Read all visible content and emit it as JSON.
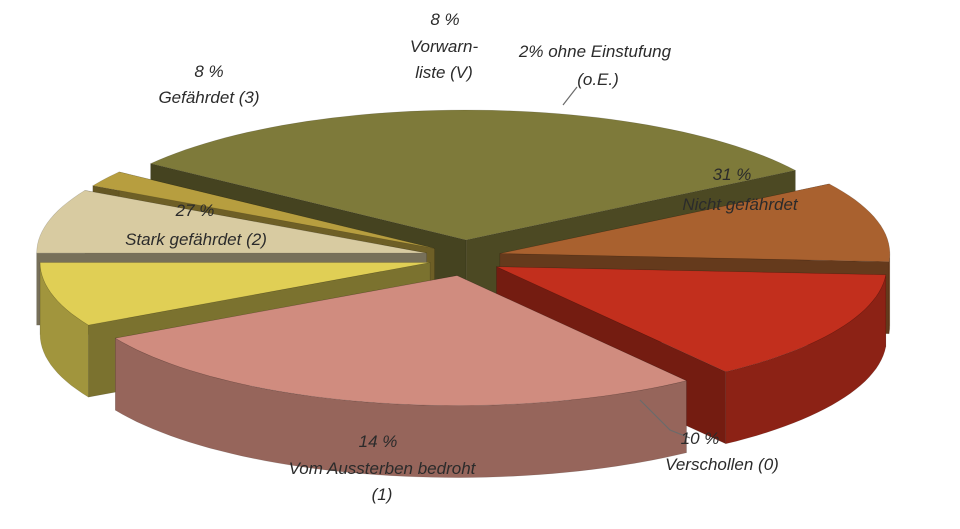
{
  "chart_data": {
    "type": "pie",
    "style": "3d-exploded",
    "slices": [
      {
        "key": "nicht",
        "value": 31,
        "pct_label": "31 %",
        "name_lines": [
          "Nicht gefährdet"
        ],
        "color": "#7e7a3a"
      },
      {
        "key": "verschollen",
        "value": 10,
        "pct_label": "10 %",
        "name_lines": [
          "Verschollen (0)"
        ],
        "color": "#a9612f"
      },
      {
        "key": "vom",
        "value": 14,
        "pct_label": "14 %",
        "name_lines": [
          "Vom Aussterben bedroht",
          "(1)"
        ],
        "color": "#c22f1d"
      },
      {
        "key": "stark",
        "value": 27,
        "pct_label": "27 %",
        "name_lines": [
          "Stark gefährdet (2)"
        ],
        "color": "#d08c7f"
      },
      {
        "key": "gef",
        "value": 8,
        "pct_label": "8 %",
        "name_lines": [
          "Gefährdet (3)"
        ],
        "color": "#e0cf55"
      },
      {
        "key": "vor",
        "value": 8,
        "pct_label": "8 %",
        "name_lines": [
          "Vorwarn-",
          "liste (V)"
        ],
        "color": "#d8cba1"
      },
      {
        "key": "oe",
        "value": 2,
        "pct_label": "2% ohne Einstufung",
        "name_lines": [
          "(o.E.)"
        ],
        "color": "#b79e3f"
      }
    ]
  }
}
